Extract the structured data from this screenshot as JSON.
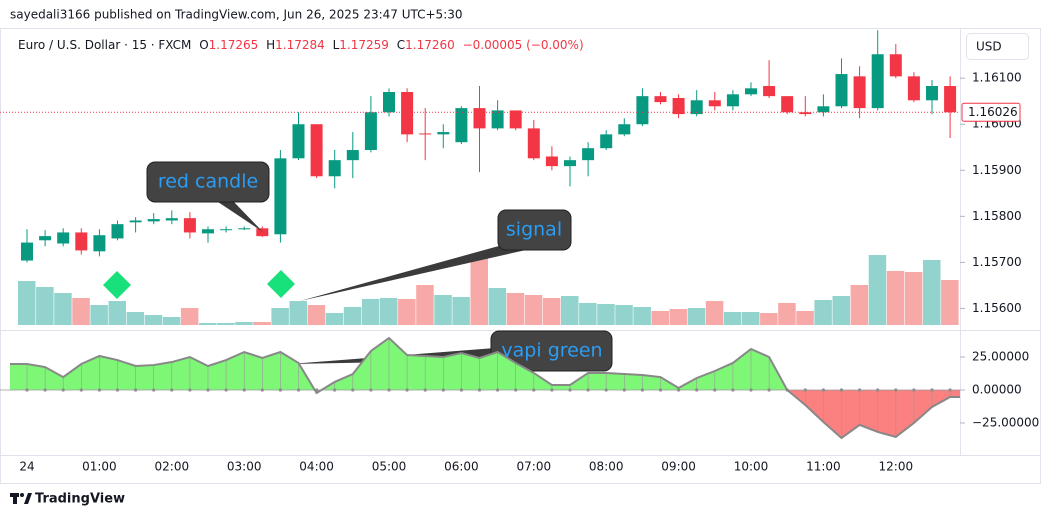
{
  "header": {
    "published": "sayedali3166 published on TradingView.com, Jun 26, 2025 23:47 UTC+5:30",
    "symbol": "Euro / U.S. Dollar · 15 · FXCM",
    "o_label": "O",
    "o_value": "1.17265",
    "h_label": "H",
    "h_value": "1.17284",
    "l_label": "L",
    "l_value": "1.17259",
    "c_label": "C",
    "c_value": "1.17260",
    "change": "−0.00005 (−0.00%)",
    "currency": "USD"
  },
  "footer": {
    "brand": "TradingView"
  },
  "annotations": [
    "red candle",
    "signal",
    "vapi green"
  ],
  "chart_data": [
    {
      "type": "candlestick",
      "categories": [
        "24",
        null,
        null,
        null,
        "01:00",
        null,
        null,
        null,
        "02:00",
        null,
        null,
        null,
        "03:00",
        null,
        null,
        null,
        "04:00",
        null,
        null,
        null,
        "05:00",
        null,
        null,
        null,
        "06:00",
        null,
        null,
        null,
        "07:00",
        null,
        null,
        null,
        "08:00",
        null,
        null,
        null,
        "09:00",
        null,
        null,
        null,
        "10:00",
        null,
        null,
        null,
        "11:00",
        null,
        null,
        null,
        "12:00",
        null,
        null,
        null
      ],
      "open": [
        1.15704,
        1.15748,
        1.15741,
        1.15765,
        1.15724,
        1.15752,
        1.15787,
        1.15789,
        1.15791,
        1.15796,
        1.15763,
        1.1577,
        1.15772,
        1.15774,
        1.15761,
        1.15926,
        1.16,
        1.15887,
        1.15922,
        1.15944,
        1.16026,
        1.1607,
        1.1598,
        1.15978,
        1.15961,
        1.16035,
        1.15991,
        1.1603,
        1.15991,
        1.1593,
        1.15909,
        1.15922,
        1.15948,
        1.15978,
        1.16,
        1.16061,
        1.16057,
        1.16022,
        1.16052,
        1.16039,
        1.16065,
        1.16083,
        1.16061,
        1.16026,
        1.16026,
        1.16039,
        1.16104,
        1.16035,
        1.16152,
        1.16104,
        1.16052,
        1.16083
      ],
      "high": [
        1.15772,
        1.1577,
        1.15774,
        1.15774,
        1.15772,
        1.15791,
        1.15798,
        1.15807,
        1.15813,
        1.15809,
        1.15778,
        1.15778,
        1.15778,
        1.15778,
        1.15944,
        1.16026,
        1.16,
        1.15944,
        1.15983,
        1.16061,
        1.16078,
        1.16078,
        1.16035,
        1.16,
        1.16039,
        1.16083,
        1.16052,
        1.1603,
        1.16009,
        1.15952,
        1.1593,
        1.15961,
        1.15987,
        1.16013,
        1.16078,
        1.1607,
        1.16065,
        1.16074,
        1.1607,
        1.16074,
        1.16091,
        1.16139,
        1.16061,
        1.16061,
        1.16065,
        1.16143,
        1.16126,
        1.16204,
        1.16174,
        1.16113,
        1.16096,
        1.16104
      ],
      "low": [
        1.157,
        1.15735,
        1.15735,
        1.15717,
        1.15713,
        1.15748,
        1.15765,
        1.15783,
        1.15783,
        1.15752,
        1.15743,
        1.15765,
        1.1577,
        1.15755,
        1.15743,
        1.15922,
        1.15883,
        1.15861,
        1.15883,
        1.15939,
        1.16017,
        1.15961,
        1.15922,
        1.15948,
        1.15957,
        1.15896,
        1.15987,
        1.15987,
        1.15922,
        1.159,
        1.15865,
        1.15887,
        1.15944,
        1.15974,
        1.15996,
        1.16043,
        1.16013,
        1.16017,
        1.1603,
        1.1603,
        1.16061,
        1.16057,
        1.16022,
        1.16017,
        1.16017,
        1.16035,
        1.16013,
        1.1603,
        1.161,
        1.16048,
        1.16022,
        1.1597
      ],
      "close": [
        1.15743,
        1.15757,
        1.15765,
        1.15726,
        1.15759,
        1.15783,
        1.15791,
        1.15794,
        1.15796,
        1.15765,
        1.15772,
        1.15772,
        1.15774,
        1.15757,
        1.15926,
        1.16,
        1.15887,
        1.15922,
        1.15944,
        1.16026,
        1.1607,
        1.15978,
        1.15978,
        1.15983,
        1.16035,
        1.15991,
        1.1603,
        1.15991,
        1.15926,
        1.15909,
        1.15922,
        1.15948,
        1.15978,
        1.16,
        1.16061,
        1.16048,
        1.16022,
        1.16052,
        1.16039,
        1.16065,
        1.16078,
        1.16061,
        1.16026,
        1.16022,
        1.16039,
        1.16109,
        1.16035,
        1.16152,
        1.16104,
        1.16052,
        1.16083,
        1.16026
      ],
      "up_color": "#089981",
      "down_color": "#f23645",
      "ylim": [
        1.15564,
        1.16209
      ],
      "yticks": [
        {
          "value": 1.161,
          "label": "1.16100"
        },
        {
          "value": 1.16,
          "label": "1.16000"
        },
        {
          "value": 1.159,
          "label": "1.15900"
        },
        {
          "value": 1.158,
          "label": "1.15800"
        },
        {
          "value": 1.157,
          "label": "1.15700"
        },
        {
          "value": 1.156,
          "label": "1.15600"
        }
      ],
      "last_price": 1.16026
    },
    {
      "type": "bar",
      "values": [
        44,
        38,
        32,
        27,
        20,
        24,
        13,
        10,
        8,
        17,
        2,
        2,
        3,
        3,
        17,
        24,
        20,
        12,
        18,
        26,
        27,
        26,
        40,
        30,
        28,
        67,
        37,
        32,
        30,
        27,
        29,
        22,
        21,
        20,
        18,
        14,
        16,
        17,
        24,
        13,
        13,
        12,
        22,
        14,
        25,
        29,
        40,
        70,
        54,
        53,
        65,
        45
      ],
      "up_color": "#92d3cd",
      "down_color": "#f7a9a7",
      "ylim": [
        0,
        70
      ]
    },
    {
      "type": "area",
      "values": [
        19.7,
        17.4,
        9.8,
        19.7,
        25.8,
        22.7,
        18.2,
        18.9,
        21.2,
        25.0,
        18.2,
        22.7,
        28.8,
        24.3,
        28.8,
        20.5,
        -2.3,
        6.1,
        12.1,
        29.6,
        39.4,
        26.5,
        25.8,
        25.0,
        28.0,
        24.3,
        28.8,
        20.5,
        12.9,
        3.8,
        3.8,
        12.9,
        12.9,
        12.1,
        11.4,
        9.8,
        1.5,
        9.1,
        14.4,
        20.5,
        31.1,
        25.0,
        0.0,
        -11.4,
        -24.3,
        -36.4,
        -26.5,
        -31.8,
        -35.6,
        -25.0,
        -12.9,
        -5.3
      ],
      "line_color": "#888888",
      "positive_color": "#7ef777",
      "negative_color": "#fb8080",
      "ylim": [
        -49.3,
        41.7
      ],
      "yticks": [
        {
          "value": 25,
          "label": "25.00000"
        },
        {
          "value": 0,
          "label": "0.00000"
        },
        {
          "value": -25,
          "label": "−25.00000"
        }
      ]
    }
  ]
}
